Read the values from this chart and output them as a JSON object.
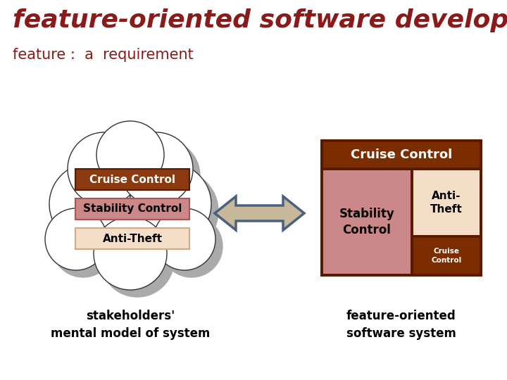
{
  "title": "feature-oriented software development",
  "subtitle": "feature :  a  requirement",
  "title_color": "#8B1A1A",
  "subtitle_color": "#8B1A1A",
  "bg_color": "#FFFFFF",
  "cloud_labels": [
    "Cruise Control",
    "Stability Control",
    "Anti-Theft"
  ],
  "cloud_label_bgs": [
    "#8B3A0F",
    "#D4909090",
    "#FAD9C0"
  ],
  "cloud_label_colors_hex": [
    "#8B3A10",
    "#C87878",
    "#F5E0C8"
  ],
  "cloud_label_text_colors": [
    "#FFFFFF",
    "#000000",
    "#000000"
  ],
  "box_header_text": "Cruise Control",
  "box_header_bg": "#7B2D00",
  "box_header_text_color": "#FFFFFF",
  "box_stability_bg": "#D4888888",
  "box_stability_hex": "#CC8888",
  "box_stability_text": "Stability\nControl",
  "box_anti_hex": "#F5DEC8",
  "box_anti_text": "Anti-\nTheft",
  "box_cruise_small_bg": "#7B2D00",
  "box_cruise_small_text": "Cruise\nControl",
  "box_border_color": "#5A1A00",
  "arrow_fill": "#C8B89A",
  "arrow_edge": "#4A6080",
  "stakeholders_text": "stakeholders'\nmental model of system",
  "feature_oriented_text": "feature-oriented\nsoftware system",
  "bottom_text_color": "#000000",
  "cloud_shadow_color": "#AAAAAA",
  "cloud_edge_color": "#333333",
  "cloud_fill_color": "#FFFFFF"
}
